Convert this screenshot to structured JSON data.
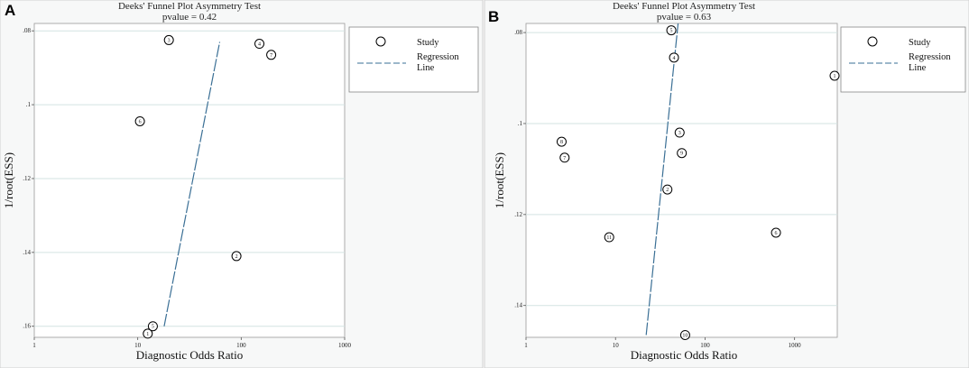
{
  "chart_data": [
    {
      "panel": "A",
      "type": "scatter",
      "title": "Deeks' Funnel Plot Asymmetry Test",
      "pvalue_text": "pvalue =  0.42",
      "xlabel": "Diagnostic Odds Ratio",
      "ylabel": "1/root(ESS)",
      "xscale": "log",
      "xlim": [
        1,
        1000
      ],
      "xticks": [
        1,
        10,
        100,
        1000
      ],
      "xtick_labels": [
        "1",
        "10",
        "100",
        "1000"
      ],
      "ylim": [
        0.078,
        0.163
      ],
      "yreversed": true,
      "yticks": [
        0.08,
        0.1,
        0.12,
        0.14,
        0.16
      ],
      "ytick_labels": [
        ".08",
        ".1",
        ".12",
        ".14",
        ".16"
      ],
      "points": [
        {
          "label": "1",
          "x": 12.5,
          "y": 0.162
        },
        {
          "label": "2",
          "x": 90,
          "y": 0.141
        },
        {
          "label": "3",
          "x": 20,
          "y": 0.0825
        },
        {
          "label": "4",
          "x": 150,
          "y": 0.0835
        },
        {
          "label": "5",
          "x": 14,
          "y": 0.16
        },
        {
          "label": "6",
          "x": 10.5,
          "y": 0.1045
        },
        {
          "label": "7",
          "x": 195,
          "y": 0.0865
        }
      ],
      "regression_line": [
        {
          "x": 18,
          "y": 0.16
        },
        {
          "x": 62,
          "y": 0.083
        }
      ],
      "legend": {
        "position": "right",
        "entries": [
          "Study",
          "Regression",
          "Line"
        ]
      }
    },
    {
      "panel": "B",
      "type": "scatter",
      "title": "Deeks' Funnel Plot Asymmetry Test",
      "pvalue_text": "pvalue =  0.63",
      "xlabel": "Diagnostic Odds Ratio",
      "ylabel": "1/root(ESS)",
      "xscale": "log",
      "xlim": [
        1,
        3000
      ],
      "xticks": [
        1,
        10,
        100,
        1000
      ],
      "xtick_labels": [
        "1",
        "10",
        "100",
        "1000"
      ],
      "ylim": [
        0.078,
        0.147
      ],
      "yreversed": true,
      "yticks": [
        0.08,
        0.1,
        0.12,
        0.14
      ],
      "ytick_labels": [
        ".08",
        ".1",
        ".12",
        ".14"
      ],
      "points": [
        {
          "label": "1",
          "x": 2800,
          "y": 0.0895
        },
        {
          "label": "2",
          "x": 38,
          "y": 0.1145
        },
        {
          "label": "3",
          "x": 52,
          "y": 0.102
        },
        {
          "label": "4",
          "x": 45,
          "y": 0.0855
        },
        {
          "label": "5",
          "x": 42,
          "y": 0.0795
        },
        {
          "label": "6",
          "x": 620,
          "y": 0.124
        },
        {
          "label": "7",
          "x": 2.7,
          "y": 0.1075
        },
        {
          "label": "8",
          "x": 2.5,
          "y": 0.104
        },
        {
          "label": "9",
          "x": 55,
          "y": 0.1065
        },
        {
          "label": "10",
          "x": 60,
          "y": 0.1465
        },
        {
          "label": "11",
          "x": 8.5,
          "y": 0.125
        }
      ],
      "regression_line": [
        {
          "x": 22,
          "y": 0.1465
        },
        {
          "x": 50,
          "y": 0.078
        }
      ],
      "legend": {
        "position": "right",
        "entries": [
          "Study",
          "Regression",
          "Line"
        ]
      }
    }
  ]
}
